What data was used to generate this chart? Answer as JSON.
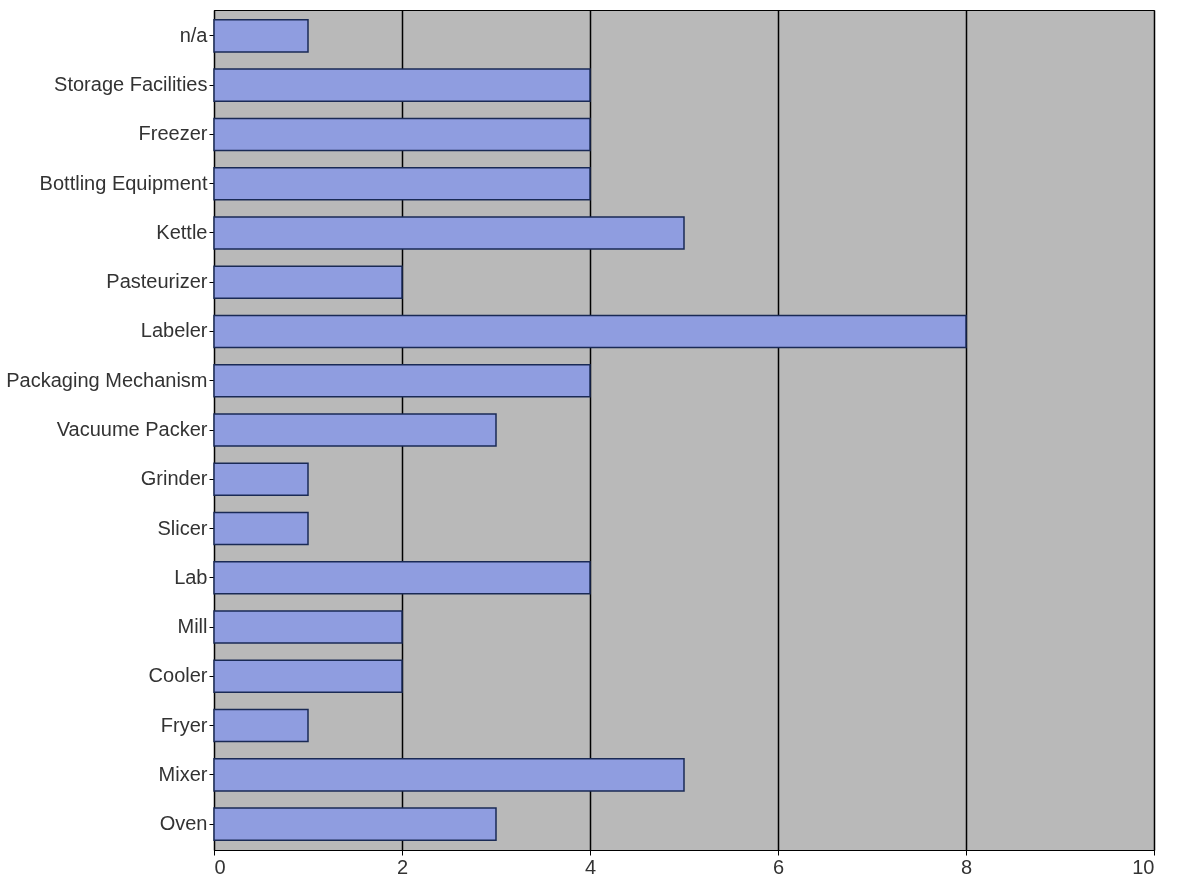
{
  "chart_data": {
    "type": "bar",
    "orientation": "horizontal",
    "categories": [
      "n/a",
      "Storage Facilities",
      "Freezer",
      "Bottling Equipment",
      "Kettle",
      "Pasteurizer",
      "Labeler",
      "Packaging Mechanism",
      "Vacuume Packer",
      "Grinder",
      "Slicer",
      "Lab",
      "Mill",
      "Cooler",
      "Fryer",
      "Mixer",
      "Oven"
    ],
    "values": [
      1,
      4,
      4,
      4,
      5,
      2,
      8,
      4,
      3,
      1,
      1,
      4,
      2,
      2,
      1,
      5,
      3
    ],
    "color": "#8f9de0",
    "xlim": [
      0,
      10
    ],
    "xticks": [
      0,
      2,
      4,
      6,
      8,
      10
    ],
    "grid": "x"
  }
}
